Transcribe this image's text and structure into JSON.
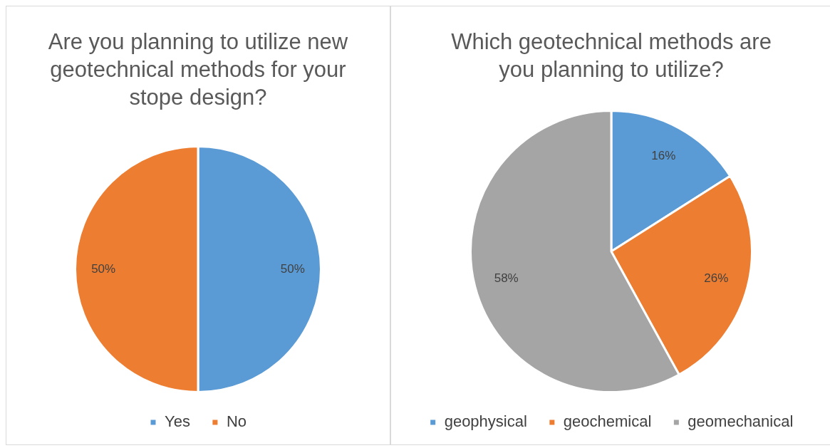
{
  "chart_data": [
    {
      "type": "pie",
      "title": "Are you planning to utilize new geotechnical methods for your stope design?",
      "categories": [
        "Yes",
        "No"
      ],
      "values": [
        50,
        50
      ],
      "colors": [
        "#5b9bd5",
        "#ed7d31"
      ],
      "value_labels": [
        "50%",
        "50%"
      ],
      "legend": "bottom"
    },
    {
      "type": "pie",
      "title": "Which geotechnical methods are you planning to utilize?",
      "categories": [
        "geophysical",
        "geochemical",
        "geomechanical"
      ],
      "values": [
        16,
        26,
        58
      ],
      "colors": [
        "#5b9bd5",
        "#ed7d31",
        "#a5a5a5"
      ],
      "value_labels": [
        "16%",
        "26%",
        "58%"
      ],
      "legend": "bottom"
    }
  ]
}
